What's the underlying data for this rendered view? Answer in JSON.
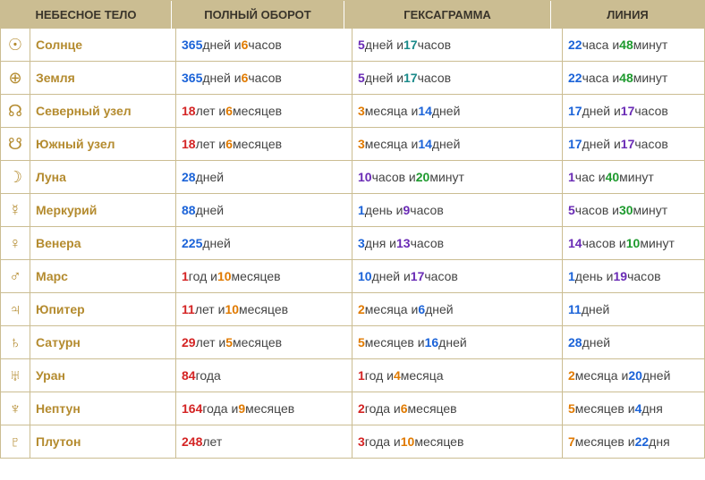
{
  "header": {
    "c0": "НЕБЕСНОЕ ТЕЛО",
    "c1": "ПОЛНЫЙ ОБОРОТ",
    "c2": "ГЕКСАГРАММА",
    "c3": "ЛИНИЯ"
  },
  "rows": [
    {
      "sym": "☉",
      "name": "Солнце",
      "rev": [
        [
          "365",
          "blue"
        ],
        [
          " дней и "
        ],
        [
          "6",
          "orange"
        ],
        [
          " часов"
        ]
      ],
      "hex": [
        [
          "5",
          "purple"
        ],
        [
          " дней и "
        ],
        [
          "17",
          "teal"
        ],
        [
          " часов"
        ]
      ],
      "line": [
        [
          "22",
          "blue"
        ],
        [
          " часа и "
        ],
        [
          "48",
          "green"
        ],
        [
          " минут"
        ]
      ]
    },
    {
      "sym": "⊕",
      "name": "Земля",
      "rev": [
        [
          "365",
          "blue"
        ],
        [
          " дней и "
        ],
        [
          "6",
          "orange"
        ],
        [
          " часов"
        ]
      ],
      "hex": [
        [
          "5",
          "purple"
        ],
        [
          " дней и "
        ],
        [
          "17",
          "teal"
        ],
        [
          " часов"
        ]
      ],
      "line": [
        [
          "22",
          "blue"
        ],
        [
          " часа и "
        ],
        [
          "48",
          "green"
        ],
        [
          " минут"
        ]
      ]
    },
    {
      "sym": "☊",
      "name": "Северный узел",
      "rev": [
        [
          "18",
          "red"
        ],
        [
          " лет и "
        ],
        [
          "6",
          "orange"
        ],
        [
          " месяцев"
        ]
      ],
      "hex": [
        [
          "3",
          "orange"
        ],
        [
          " месяца и "
        ],
        [
          "14",
          "blue"
        ],
        [
          " дней"
        ]
      ],
      "line": [
        [
          "17",
          "blue"
        ],
        [
          " дней и "
        ],
        [
          "17",
          "purple"
        ],
        [
          " часов"
        ]
      ]
    },
    {
      "sym": "☋",
      "name": "Южный узел",
      "rev": [
        [
          "18",
          "red"
        ],
        [
          " лет и "
        ],
        [
          "6",
          "orange"
        ],
        [
          " месяцев"
        ]
      ],
      "hex": [
        [
          "3",
          "orange"
        ],
        [
          " месяца и "
        ],
        [
          "14",
          "blue"
        ],
        [
          " дней"
        ]
      ],
      "line": [
        [
          "17",
          "blue"
        ],
        [
          " дней и "
        ],
        [
          "17",
          "purple"
        ],
        [
          " часов"
        ]
      ]
    },
    {
      "sym": "☽",
      "name": "Луна",
      "rev": [
        [
          "28",
          "blue"
        ],
        [
          " дней"
        ]
      ],
      "hex": [
        [
          "10",
          "purple"
        ],
        [
          " часов и "
        ],
        [
          "20",
          "green"
        ],
        [
          " минут"
        ]
      ],
      "line": [
        [
          "1",
          "purple"
        ],
        [
          " час и "
        ],
        [
          "40",
          "green"
        ],
        [
          " минут"
        ]
      ]
    },
    {
      "sym": "☿",
      "name": "Меркурий",
      "rev": [
        [
          "88",
          "blue"
        ],
        [
          " дней"
        ]
      ],
      "hex": [
        [
          "1",
          "blue"
        ],
        [
          " день и "
        ],
        [
          "9",
          "purple"
        ],
        [
          " часов"
        ]
      ],
      "line": [
        [
          "5",
          "purple"
        ],
        [
          " часов и "
        ],
        [
          "30",
          "green"
        ],
        [
          " минут"
        ]
      ]
    },
    {
      "sym": "♀",
      "name": "Венера",
      "rev": [
        [
          "225",
          "blue"
        ],
        [
          " дней"
        ]
      ],
      "hex": [
        [
          "3",
          "blue"
        ],
        [
          " дня и "
        ],
        [
          "13",
          "purple"
        ],
        [
          " часов"
        ]
      ],
      "line": [
        [
          "14",
          "purple"
        ],
        [
          " часов и "
        ],
        [
          "10",
          "green"
        ],
        [
          " минут"
        ]
      ]
    },
    {
      "sym": "♂",
      "name": "Марс",
      "rev": [
        [
          "1",
          "red"
        ],
        [
          " год и "
        ],
        [
          "10",
          "orange"
        ],
        [
          " месяцев"
        ]
      ],
      "hex": [
        [
          "10",
          "blue"
        ],
        [
          " дней и "
        ],
        [
          "17",
          "purple"
        ],
        [
          " часов"
        ]
      ],
      "line": [
        [
          "1",
          "blue"
        ],
        [
          " день и "
        ],
        [
          "19",
          "purple"
        ],
        [
          " часов"
        ]
      ]
    },
    {
      "sym": "♃",
      "name": "Юпитер",
      "rev": [
        [
          "11",
          "red"
        ],
        [
          " лет и "
        ],
        [
          "10",
          "orange"
        ],
        [
          " месяцев"
        ]
      ],
      "hex": [
        [
          "2",
          "orange"
        ],
        [
          " месяца и "
        ],
        [
          "6",
          "blue"
        ],
        [
          " дней"
        ]
      ],
      "line": [
        [
          "11",
          "blue"
        ],
        [
          " дней"
        ]
      ]
    },
    {
      "sym": "♄",
      "name": "Сатурн",
      "rev": [
        [
          "29",
          "red"
        ],
        [
          " лет и "
        ],
        [
          "5",
          "orange"
        ],
        [
          " месяцев"
        ]
      ],
      "hex": [
        [
          "5",
          "orange"
        ],
        [
          " месяцев и "
        ],
        [
          "16",
          "blue"
        ],
        [
          " дней"
        ]
      ],
      "line": [
        [
          "28",
          "blue"
        ],
        [
          " дней"
        ]
      ]
    },
    {
      "sym": "♅",
      "name": "Уран",
      "rev": [
        [
          "84",
          "red"
        ],
        [
          " года"
        ]
      ],
      "hex": [
        [
          "1",
          "red"
        ],
        [
          " год и "
        ],
        [
          "4",
          "orange"
        ],
        [
          " месяца"
        ]
      ],
      "line": [
        [
          "2",
          "orange"
        ],
        [
          " месяца и "
        ],
        [
          "20",
          "blue"
        ],
        [
          " дней"
        ]
      ]
    },
    {
      "sym": "♆",
      "name": "Нептун",
      "rev": [
        [
          "164",
          "red"
        ],
        [
          " года и "
        ],
        [
          "9",
          "orange"
        ],
        [
          " месяцев"
        ]
      ],
      "hex": [
        [
          "2",
          "red"
        ],
        [
          " года и "
        ],
        [
          "6",
          "orange"
        ],
        [
          " месяцев"
        ]
      ],
      "line": [
        [
          "5",
          "orange"
        ],
        [
          " месяцев и "
        ],
        [
          "4",
          "blue"
        ],
        [
          " дня"
        ]
      ]
    },
    {
      "sym": "♇",
      "name": "Плутон",
      "rev": [
        [
          "248",
          "red"
        ],
        [
          "  лет"
        ]
      ],
      "hex": [
        [
          "3",
          "red"
        ],
        [
          " года и "
        ],
        [
          "10",
          "orange"
        ],
        [
          " месяцев"
        ]
      ],
      "line": [
        [
          "7",
          "orange"
        ],
        [
          " месяцев и "
        ],
        [
          "22",
          "blue"
        ],
        [
          " дня"
        ]
      ]
    }
  ],
  "colors": {
    "blue": "#1b63d8",
    "red": "#d42424",
    "orange": "#e07a00",
    "purple": "#6a2bb5",
    "green": "#1e9a2e",
    "teal": "#1a8a8a",
    "gold": "#b48b2f",
    "header_bg": "#cbbd92"
  }
}
